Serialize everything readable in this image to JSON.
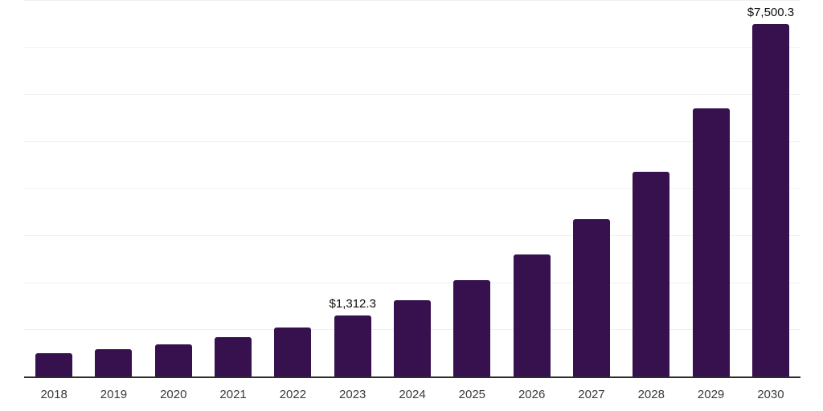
{
  "chart_data": {
    "type": "bar",
    "title": "",
    "xlabel": "",
    "ylabel": "",
    "categories": [
      "2018",
      "2019",
      "2020",
      "2021",
      "2022",
      "2023",
      "2024",
      "2025",
      "2026",
      "2027",
      "2028",
      "2029",
      "2030"
    ],
    "values": [
      510,
      600,
      705,
      850,
      1065,
      1312.3,
      1635,
      2060,
      2610,
      3360,
      4370,
      5720,
      7500.3
    ],
    "annotations": [
      {
        "category": "2023",
        "label": "$1,312.3"
      },
      {
        "category": "2030",
        "label": "$7,500.3"
      }
    ],
    "ylim": [
      0,
      8000
    ],
    "gridline_interval": 1000,
    "grid": "horizontal-only",
    "legend_position": "none",
    "y_tick_labels_visible": false
  },
  "colors": {
    "bar": "#36114e",
    "gridline": "#f0f0f0",
    "axis_line": "#2d2d2d",
    "x_label_text": "#3a3a3a",
    "value_label_text": "#0d0d0d",
    "background": "#ffffff"
  }
}
